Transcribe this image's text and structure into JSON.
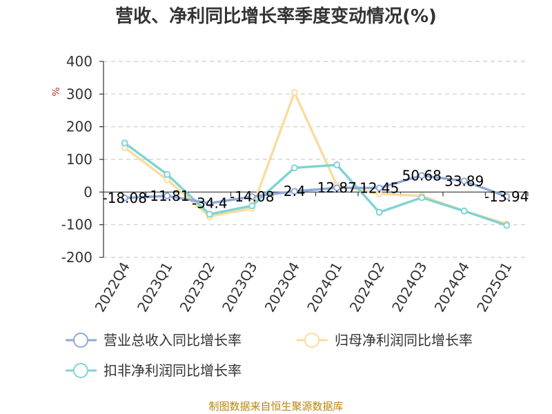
{
  "chart_data": {
    "type": "line",
    "title": "营收、净利同比增长率季度变动情况(%)",
    "ylabel": "%",
    "ylim": [
      -200,
      400
    ],
    "yticks": [
      400,
      300,
      200,
      100,
      0,
      -100,
      -200
    ],
    "grid": true,
    "categories": [
      "2022Q4",
      "2023Q1",
      "2023Q2",
      "2023Q3",
      "2023Q4",
      "2024Q1",
      "2024Q2",
      "2024Q3",
      "2024Q4",
      "2025Q1"
    ],
    "series": [
      {
        "name": "营业总收入同比增长率",
        "color": "#8fa8d9",
        "values": [
          -18.08,
          -11.81,
          -34.4,
          -14.08,
          2.4,
          12.87,
          12.45,
          50.68,
          33.89,
          -13.94
        ],
        "labels": [
          "-18.08",
          "-11.81",
          "-34.4",
          "-14.08",
          "2.4",
          "12.87",
          "12.45",
          "50.68",
          "33.89",
          "-13.94"
        ]
      },
      {
        "name": "归母净利润同比增长率",
        "color": "#f9dca0",
        "values": [
          136,
          38,
          -75,
          -50,
          305,
          20,
          -5,
          -12,
          -58,
          -98
        ]
      },
      {
        "name": "扣非净利润同比增长率",
        "color": "#80d3d3",
        "values": [
          150,
          54,
          -68,
          -42,
          74,
          83,
          -62,
          -17,
          -58,
          -102
        ]
      }
    ],
    "legend": "bottom"
  },
  "source_note": "制图数据来自恒生聚源数据库"
}
